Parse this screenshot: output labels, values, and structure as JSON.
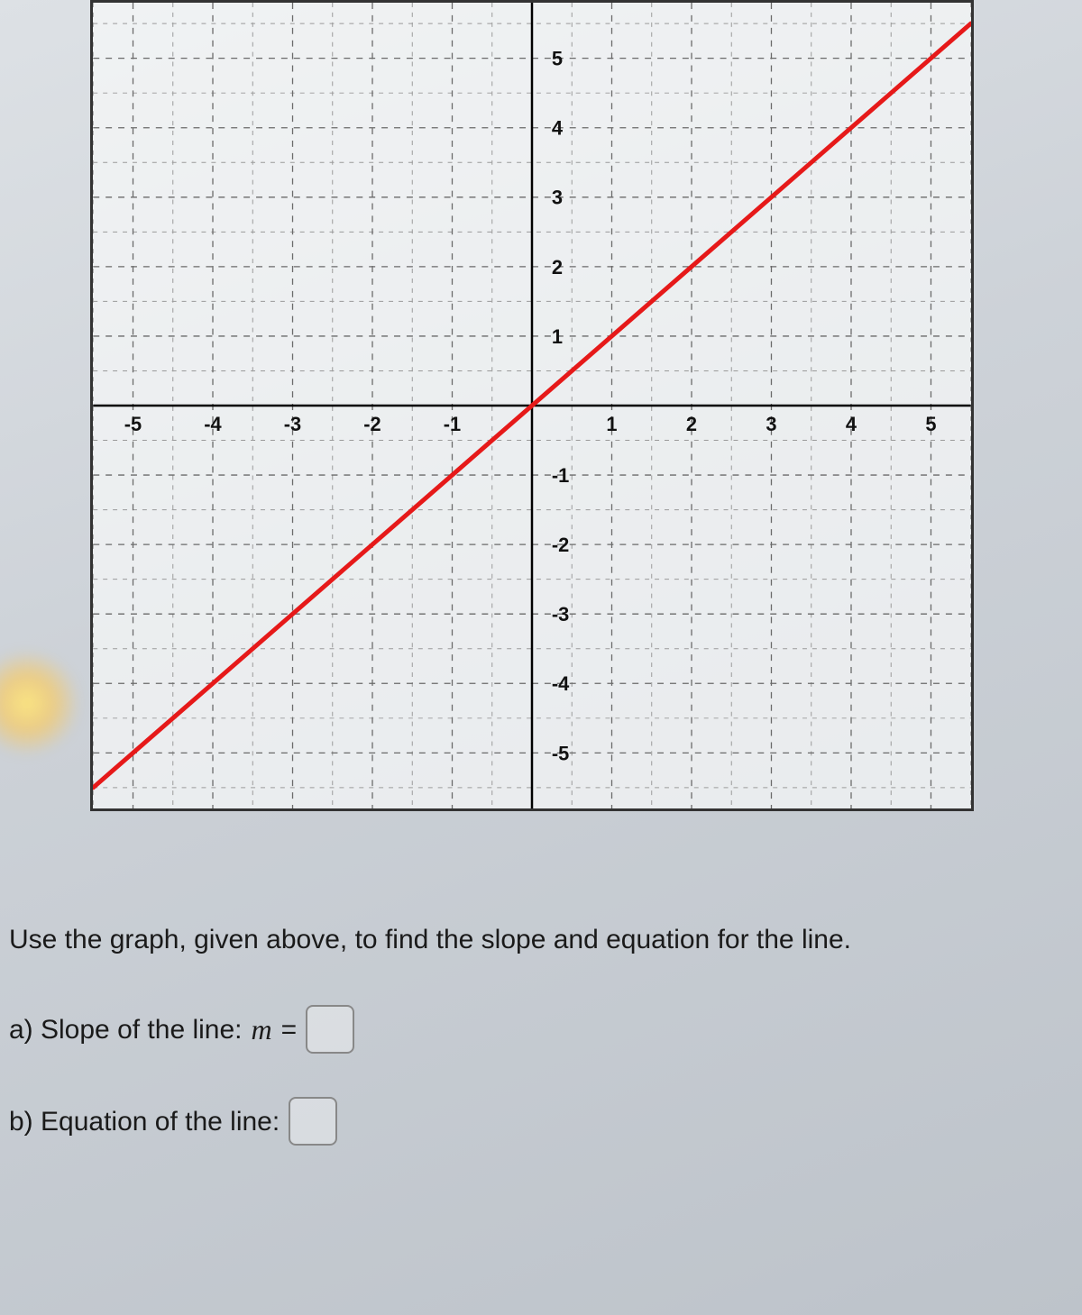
{
  "chart": {
    "type": "line",
    "xlim": [
      -5.5,
      5.5
    ],
    "ylim": [
      -5.8,
      5.8
    ],
    "xticks": [
      -5,
      -4,
      -3,
      -2,
      -1,
      1,
      2,
      3,
      4,
      5
    ],
    "yticks": [
      5,
      4,
      3,
      2,
      1,
      -1,
      -2,
      -3,
      -4,
      -5
    ],
    "major_grid_color": "#6a6a6a",
    "minor_grid_color": "#9a9a9a",
    "axis_color": "#000000",
    "background_color": "#f2f3f4",
    "line_color": "#e61919",
    "line_width": 5,
    "line_points": [
      [
        -5.5,
        -5.5
      ],
      [
        5.5,
        5.5
      ]
    ],
    "label_fontsize": 22,
    "label_fontweight": "bold"
  },
  "question": {
    "prompt": "Use the graph, given above, to find the slope and equation for the line.",
    "part_a_label": "a) Slope of the line: ",
    "part_a_var": "m",
    "part_a_eq": " = ",
    "part_b_label": "b) Equation of the line: "
  }
}
